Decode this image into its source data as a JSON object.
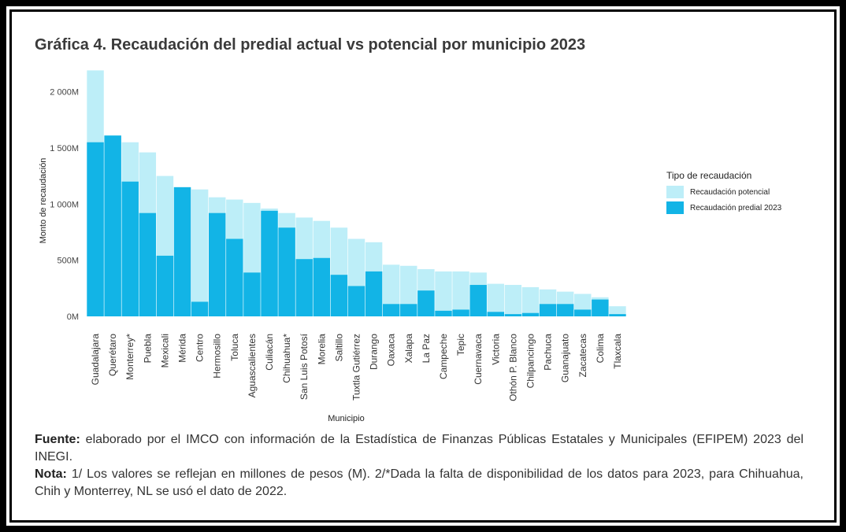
{
  "title": "Gráfica 4. Recaudación del predial actual vs potencial por municipio 2023",
  "legend": {
    "title": "Tipo de recaudación",
    "items": [
      "Recaudación potencial",
      "Recaudación predial 2023"
    ]
  },
  "colors": {
    "potencial": "#bdeef8",
    "actual": "#12b4e6"
  },
  "chart_data": {
    "type": "bar",
    "xlabel": "Municipio",
    "ylabel": "Monto de recaudación",
    "ylim": [
      0,
      2200
    ],
    "yticks": [
      0,
      500,
      1000,
      1500,
      2000
    ],
    "ytick_labels": [
      "0M",
      "500M",
      "1 000M",
      "1 500M",
      "2 000M"
    ],
    "categories": [
      "Guadalajara",
      "Querétaro",
      "Monterrey*",
      "Puebla",
      "Mexicali",
      "Mérida",
      "Centro",
      "Hermosillo",
      "Toluca",
      "Aguascalientes",
      "Culiacán",
      "Chihuahua*",
      "San Luis Potosí",
      "Morelia",
      "Saltillo",
      "Tuxtla Gutiérrez",
      "Durango",
      "Oaxaca",
      "Xalapa",
      "La Paz",
      "Campeche",
      "Tepic",
      "Cuernavaca",
      "Victoria",
      "Othón P. Blanco",
      "Chilpancingo",
      "Pachuca",
      "Guanajuato",
      "Zacatecas",
      "Colima",
      "Tlaxcala"
    ],
    "series": [
      {
        "name": "Recaudación potencial",
        "values": [
          2190,
          1610,
          1550,
          1460,
          1250,
          1150,
          1130,
          1060,
          1040,
          1010,
          960,
          920,
          880,
          850,
          790,
          690,
          660,
          460,
          450,
          420,
          400,
          400,
          390,
          290,
          280,
          260,
          240,
          220,
          200,
          170,
          90
        ]
      },
      {
        "name": "Recaudación predial 2023",
        "values": [
          1550,
          1610,
          1200,
          920,
          540,
          1150,
          130,
          920,
          690,
          390,
          940,
          790,
          510,
          520,
          370,
          270,
          400,
          110,
          110,
          230,
          50,
          60,
          280,
          40,
          20,
          30,
          110,
          110,
          60,
          150,
          20
        ]
      }
    ]
  },
  "notes": {
    "fuente_label": "Fuente:",
    "fuente_text": " elaborado por el IMCO con información de la Estadística de Finanzas Públicas Estatales y Municipales (EFIPEM) 2023 del INEGI.",
    "nota_label": "Nota:",
    "nota_text": " 1/ Los valores se reflejan en millones de pesos (M). 2/*Dada la falta de disponibilidad de los datos para 2023, para Chihuahua, Chih y Monterrey, NL se usó el dato de 2022."
  }
}
